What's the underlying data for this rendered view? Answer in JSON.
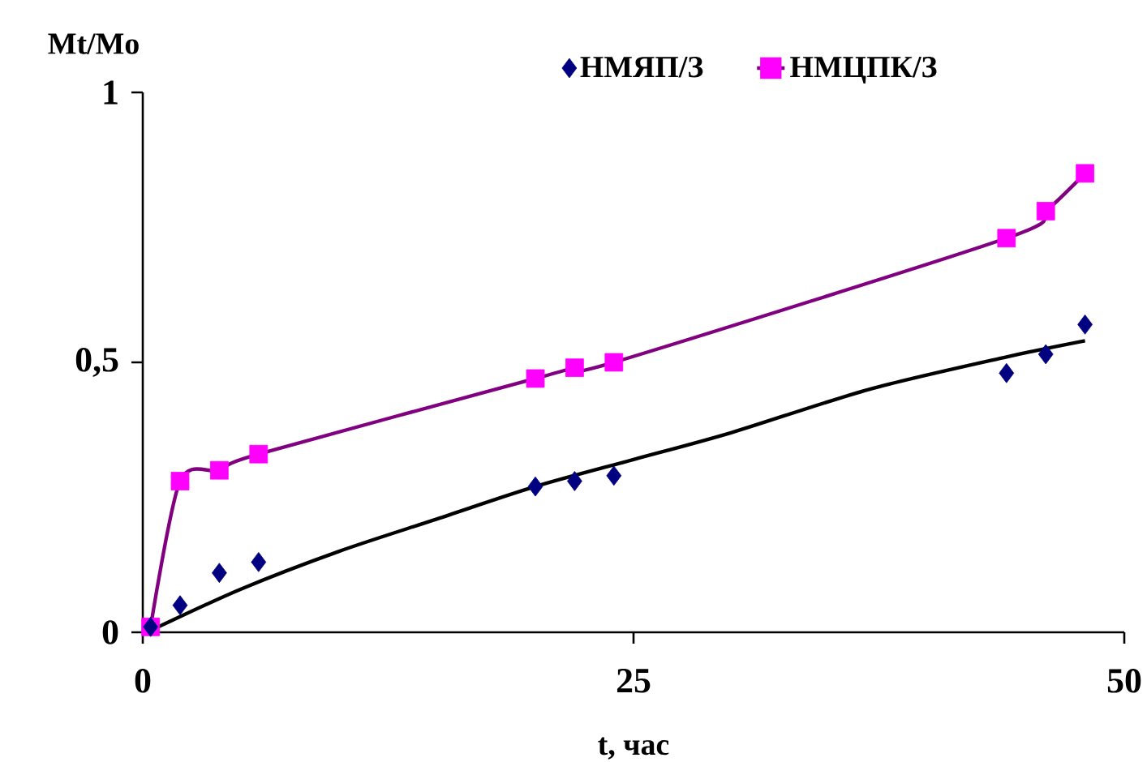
{
  "chart_data": {
    "type": "scatter",
    "xlabel": "t, час",
    "ylabel": "Mt/Mo",
    "xlim": [
      0,
      50
    ],
    "xticks": [
      0,
      25,
      50
    ],
    "ylim": [
      0,
      1
    ],
    "yticks": [
      0,
      {
        "value": 0.5,
        "label": "0,5"
      },
      1
    ],
    "legend": "top",
    "grid": false,
    "series": [
      {
        "name": "НМЯП/З",
        "marker": "diamond",
        "color": "#000080",
        "x": [
          0.4,
          1.9,
          3.9,
          5.9,
          20,
          22,
          24,
          44,
          46,
          48
        ],
        "values": [
          0.01,
          0.05,
          0.11,
          0.13,
          0.27,
          0.28,
          0.29,
          0.48,
          0.515,
          0.57
        ]
      },
      {
        "name": "НМЦПК/З",
        "marker": "square",
        "color": "#ff00ff",
        "x": [
          0.4,
          1.9,
          3.9,
          5.9,
          20,
          22,
          24,
          44,
          46,
          48
        ],
        "values": [
          0.01,
          0.28,
          0.3,
          0.33,
          0.47,
          0.49,
          0.5,
          0.73,
          0.78,
          0.85
        ]
      },
      {
        "type": "line",
        "marker": "none",
        "color": "#800080",
        "x": [
          0.4,
          1.9,
          3.9,
          5.9,
          20,
          22,
          24,
          44,
          46,
          48
        ],
        "values": [
          0.01,
          0.28,
          0.3,
          0.33,
          0.47,
          0.49,
          0.5,
          0.73,
          0.78,
          0.85
        ]
      },
      {
        "type": "line",
        "marker": "none",
        "color": "#000000",
        "x": [
          0.5,
          5,
          10,
          15,
          20,
          25,
          30,
          37,
          44,
          48
        ],
        "values": [
          0.005,
          0.08,
          0.15,
          0.21,
          0.27,
          0.32,
          0.37,
          0.45,
          0.51,
          0.54
        ]
      }
    ]
  }
}
